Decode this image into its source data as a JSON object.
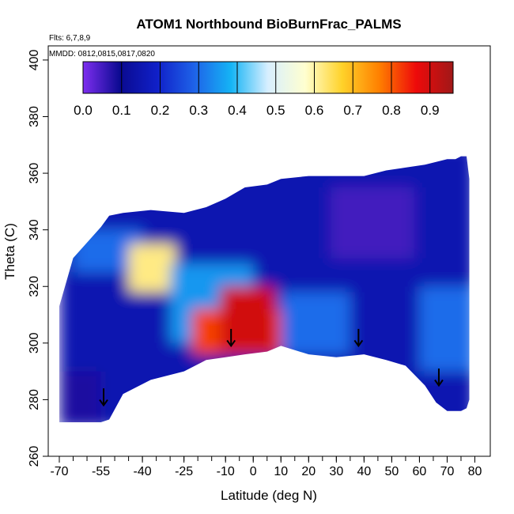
{
  "chart_data": {
    "type": "heatmap",
    "title": "ATOM1 Northbound BioBurnFrac_PALMS",
    "annotations": [
      "Flts: 6,7,8,9",
      "MMDD: 0812,0815,0817,0820"
    ],
    "xlabel": "Latitude (deg N)",
    "ylabel": "Theta (C)",
    "xlim": [
      -72,
      82
    ],
    "ylim": [
      260,
      405
    ],
    "x_ticks": [
      -70,
      -55,
      -40,
      -25,
      -10,
      0,
      10,
      20,
      30,
      40,
      50,
      60,
      70,
      80
    ],
    "x_tick_labels": [
      "-70",
      "-55",
      "-40",
      "-25",
      "-10",
      "0",
      "10",
      "20",
      "30",
      "40",
      "50",
      "60",
      "70",
      "80"
    ],
    "y_ticks": [
      260,
      280,
      300,
      320,
      340,
      360,
      380,
      400
    ],
    "y_tick_labels": [
      "260",
      "280",
      "300",
      "320",
      "340",
      "360",
      "380",
      "400"
    ],
    "colorbar": {
      "ticks": [
        0.0,
        0.1,
        0.2,
        0.3,
        0.4,
        0.5,
        0.6,
        0.7,
        0.8,
        0.9
      ],
      "tick_labels": [
        "0.0",
        "0.1",
        "0.2",
        "0.3",
        "0.4",
        "0.5",
        "0.6",
        "0.7",
        "0.8",
        "0.9"
      ],
      "range": [
        0,
        0.96
      ],
      "stops": [
        "#7e2ef0",
        "#0a0a90",
        "#1020c8",
        "#1e62e8",
        "#15b4f5",
        "#d8efff",
        "#ffffd0",
        "#ffd22a",
        "#ff8000",
        "#ee0a0a",
        "#a01818"
      ]
    },
    "coverage_boundary": {
      "lat": [
        -70,
        -65,
        -55,
        -52,
        -47,
        -37,
        -25,
        -17,
        -10,
        -3,
        5,
        10,
        20,
        30,
        40,
        48,
        55,
        62,
        66,
        70,
        73,
        75,
        77,
        78
      ],
      "theta_top": [
        313,
        330,
        341,
        345,
        346,
        347,
        346,
        348,
        351,
        355,
        356,
        358,
        359,
        359,
        359,
        361,
        362,
        363,
        364,
        365,
        365,
        366,
        366,
        358
      ],
      "theta_bottom": [
        272,
        272,
        272,
        273,
        282,
        287,
        290,
        294,
        295,
        296,
        297,
        299,
        296,
        295,
        296,
        294,
        292,
        285,
        279,
        276,
        276,
        276,
        277,
        280
      ]
    },
    "regions": [
      {
        "lat": [
          -70,
          80
        ],
        "theta": [
          270,
          370
        ],
        "value": 0.15
      },
      {
        "lat": [
          -65,
          -40
        ],
        "theta": [
          325,
          340
        ],
        "value": 0.3
      },
      {
        "lat": [
          -45,
          -28
        ],
        "theta": [
          318,
          335
        ],
        "value": 0.62
      },
      {
        "lat": [
          -30,
          0
        ],
        "theta": [
          300,
          328
        ],
        "value": 0.35
      },
      {
        "lat": [
          -22,
          10
        ],
        "theta": [
          296,
          312
        ],
        "value": 0.82
      },
      {
        "lat": [
          -12,
          8
        ],
        "theta": [
          297,
          320
        ],
        "value": 0.9
      },
      {
        "lat": [
          10,
          35
        ],
        "theta": [
          296,
          318
        ],
        "value": 0.3
      },
      {
        "lat": [
          28,
          58
        ],
        "theta": [
          330,
          355
        ],
        "value": 0.05
      },
      {
        "lat": [
          60,
          80
        ],
        "theta": [
          290,
          320
        ],
        "value": 0.3
      },
      {
        "lat": [
          -70,
          -55
        ],
        "theta": [
          272,
          290
        ],
        "value": 0.08
      }
    ],
    "arrows": [
      {
        "lat": -54,
        "theta": 278
      },
      {
        "lat": -8,
        "theta": 299
      },
      {
        "lat": 38,
        "theta": 299
      },
      {
        "lat": 67,
        "theta": 285
      }
    ]
  }
}
